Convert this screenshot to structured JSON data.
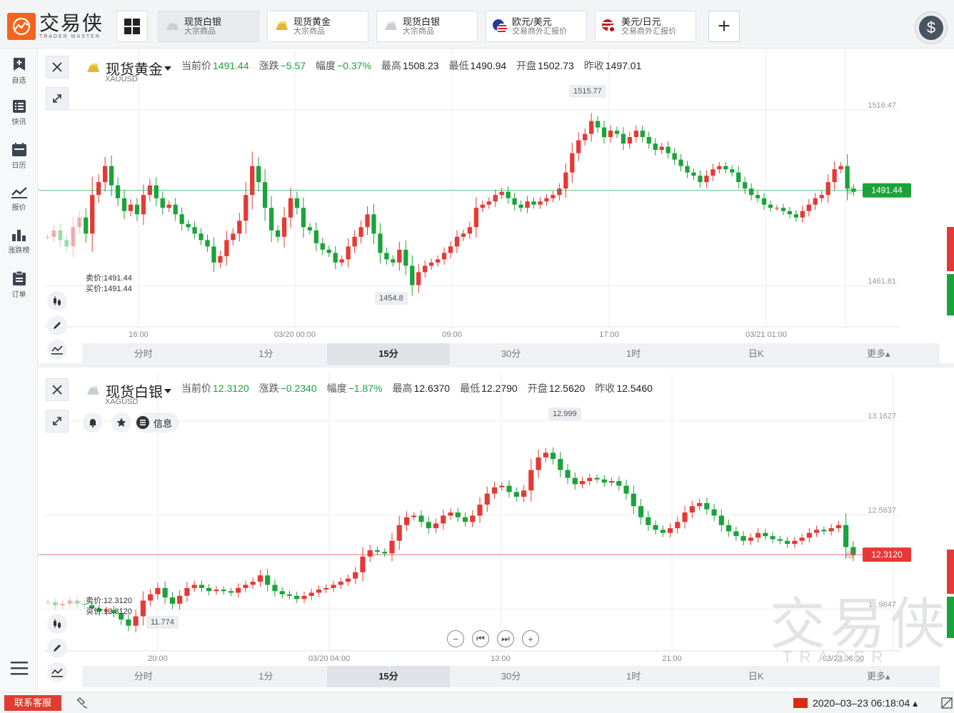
{
  "app": {
    "logo_cn": "交易侠",
    "logo_en": "TRADER MASTER"
  },
  "tabs": [
    {
      "title": "现货白银",
      "sub": "大宗商品",
      "icon": "silver-bar-icon",
      "active": true
    },
    {
      "title": "现货黄金",
      "sub": "大宗商品",
      "icon": "gold-bar-icon",
      "active": false
    },
    {
      "title": "现货白银",
      "sub": "大宗商品",
      "icon": "silver-bar-icon",
      "active": false
    },
    {
      "title": "欧元/美元",
      "sub": "交易商外汇报价",
      "icon": "eu-us-flag-icon",
      "active": false
    },
    {
      "title": "美元/日元",
      "sub": "交易商外汇报价",
      "icon": "us-jp-flag-icon",
      "active": false
    }
  ],
  "add_tab": "+",
  "currency_badge": "$",
  "sidebar": [
    {
      "label": "自选",
      "icon": "bookmark-add-icon"
    },
    {
      "label": "快讯",
      "icon": "news-list-icon"
    },
    {
      "label": "日历",
      "icon": "calendar-icon"
    },
    {
      "label": "报价",
      "icon": "trend-line-icon"
    },
    {
      "label": "涨跌榜",
      "icon": "bar-chart-icon"
    },
    {
      "label": "订单",
      "icon": "clipboard-icon"
    }
  ],
  "panel1": {
    "name": "现货黄金",
    "symbol": "XAUUSD",
    "quote": [
      {
        "k": "当前价",
        "v": "1491.44",
        "g": true
      },
      {
        "k": "涨跌",
        "v": "−5.57",
        "g": true
      },
      {
        "k": "幅度",
        "v": "−0.37%",
        "g": true
      },
      {
        "k": "最高",
        "v": "1508.23",
        "g": false
      },
      {
        "k": "最低",
        "v": "1490.94",
        "g": false
      },
      {
        "k": "开盘",
        "v": "1502.73",
        "g": false
      },
      {
        "k": "昨收",
        "v": "1497.01",
        "g": false
      }
    ],
    "sell": "卖价:1491.44",
    "buy": "买价:1491.44",
    "high_label": "1515.77",
    "low_label": "1454.8",
    "price_tag": "1491.44",
    "yticks": [
      "1516.47",
      "1461.81"
    ],
    "xticks": [
      "16:00",
      "03/20 00:00",
      "09:00",
      "17:00",
      "03/21 01:00"
    ]
  },
  "panel2": {
    "name": "现货白银",
    "symbol": "XAGUSD",
    "quote": [
      {
        "k": "当前价",
        "v": "12.3120",
        "g": true
      },
      {
        "k": "涨跌",
        "v": "−0.2340",
        "g": true
      },
      {
        "k": "幅度",
        "v": "−1.87%",
        "g": true
      },
      {
        "k": "最高",
        "v": "12.6370",
        "g": false
      },
      {
        "k": "最低",
        "v": "12.2790",
        "g": false
      },
      {
        "k": "开盘",
        "v": "12.5620",
        "g": false
      },
      {
        "k": "昨收",
        "v": "12.5460",
        "g": false
      }
    ],
    "info_label": "信息",
    "sell": "卖价:12.3120",
    "buy": "买价:12.3120",
    "high_label": "12.999",
    "low_label": "11.774",
    "price_tag": "12.3120",
    "yticks": [
      "13.1627",
      "12.5637",
      "11.9647"
    ],
    "xticks": [
      "20:00",
      "03/20 04:00",
      "13:00",
      "21:00",
      "03/23 06:00"
    ]
  },
  "timeframes": [
    "分时",
    "1分",
    "15分",
    "30分",
    "1时",
    "日K",
    "更多▴"
  ],
  "active_timeframe": "15分",
  "watermark": {
    "cn": "交易侠",
    "en": "TRADER MASTER"
  },
  "footer": {
    "support": "联系客服",
    "clock": "2020–03–23 06:18:04 ▴"
  },
  "colors": {
    "up": "#e53935",
    "down": "#1aa33a",
    "accent": "#f2651e"
  },
  "chart_data": [
    {
      "type": "candlestick",
      "title": "现货黄金",
      "x_ticks": [
        "16:00",
        "03/20 00:00",
        "09:00",
        "17:00",
        "03/21 01:00"
      ],
      "y_ticks": [
        1516.47,
        1461.81
      ],
      "high": 1515.77,
      "low": 1454.8,
      "last": 1491.44,
      "close": [
        1477,
        1479,
        1476,
        1474,
        1480,
        1483,
        1478,
        1490,
        1494,
        1499,
        1493,
        1489,
        1485,
        1487,
        1484,
        1490,
        1493,
        1489,
        1486,
        1487,
        1484,
        1481,
        1480,
        1478,
        1476,
        1474,
        1469,
        1471,
        1476,
        1478,
        1482,
        1490,
        1499,
        1494,
        1486,
        1479,
        1477,
        1483,
        1489,
        1486,
        1480,
        1479,
        1475,
        1473,
        1472,
        1469,
        1470,
        1474,
        1477,
        1480,
        1484,
        1478,
        1472,
        1470,
        1469,
        1473,
        1468,
        1462,
        1466,
        1468,
        1469,
        1470,
        1472,
        1474,
        1477,
        1478,
        1480,
        1486,
        1487,
        1488,
        1490,
        1491,
        1489,
        1487,
        1486,
        1488,
        1487,
        1488,
        1489,
        1490,
        1492,
        1497,
        1503,
        1507,
        1509,
        1513,
        1511,
        1508,
        1510,
        1509,
        1506,
        1508,
        1510,
        1508,
        1506,
        1504,
        1505,
        1503,
        1501,
        1499,
        1497,
        1496,
        1494,
        1496,
        1498,
        1499,
        1498,
        1497,
        1494,
        1492,
        1490,
        1489,
        1487,
        1486,
        1486,
        1485,
        1484,
        1483,
        1485,
        1487,
        1489,
        1490,
        1494,
        1498,
        1499,
        1492,
        1491
      ]
    },
    {
      "type": "candlestick",
      "title": "现货白银",
      "x_ticks": [
        "20:00",
        "03/20 04:00",
        "13:00",
        "21:00",
        "03/23 06:00"
      ],
      "y_ticks": [
        13.1627,
        12.5637,
        11.9647
      ],
      "high": 12.999,
      "low": 11.774,
      "last": 12.312,
      "close": [
        12.01,
        11.99,
        12.0,
        12.02,
        12.0,
        11.99,
        11.97,
        11.95,
        11.96,
        11.94,
        11.9,
        11.86,
        11.92,
        12.02,
        12.06,
        12.1,
        12.04,
        12.0,
        12.05,
        12.1,
        12.12,
        12.1,
        12.08,
        12.09,
        12.08,
        12.07,
        12.1,
        12.12,
        12.14,
        12.18,
        12.12,
        12.08,
        12.06,
        12.05,
        12.03,
        12.05,
        12.07,
        12.09,
        12.1,
        12.12,
        12.14,
        12.16,
        12.2,
        12.3,
        12.34,
        12.33,
        12.32,
        12.4,
        12.5,
        12.55,
        12.56,
        12.52,
        12.48,
        12.51,
        12.56,
        12.58,
        12.55,
        12.52,
        12.56,
        12.63,
        12.7,
        12.74,
        12.75,
        12.71,
        12.68,
        12.72,
        12.85,
        12.93,
        12.96,
        12.92,
        12.85,
        12.8,
        12.76,
        12.78,
        12.8,
        12.79,
        12.77,
        12.78,
        12.75,
        12.7,
        12.62,
        12.55,
        12.5,
        12.47,
        12.45,
        12.48,
        12.52,
        12.58,
        12.62,
        12.64,
        12.6,
        12.56,
        12.5,
        12.46,
        12.43,
        12.4,
        12.42,
        12.45,
        12.43,
        12.41,
        12.4,
        12.38,
        12.4,
        12.42,
        12.45,
        12.47,
        12.46,
        12.48,
        12.5,
        12.36,
        12.31
      ]
    }
  ]
}
